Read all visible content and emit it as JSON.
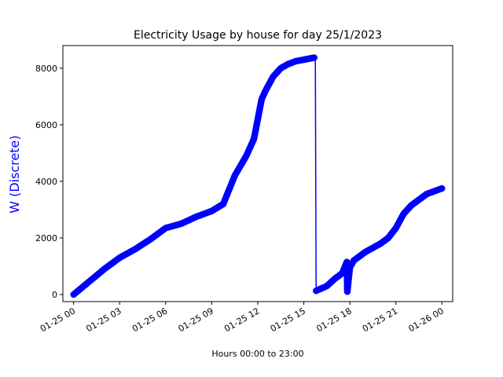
{
  "chart_data": {
    "type": "line",
    "title": "Electricity Usage by house for day 25/1/2023",
    "xlabel": "Hours 00:00 to 23:00",
    "ylabel": "W (Discrete)",
    "ylabel_color": "#0000ff",
    "series_color": "#0000ff",
    "marker": "circle",
    "grid": false,
    "xlim": [
      "2023-01-24 23:18",
      "2023-01-26 00:42"
    ],
    "ylim": [
      -250,
      8800
    ],
    "x_ticks": [
      {
        "label": "01-25 00",
        "value": "2023-01-25 00:00"
      },
      {
        "label": "01-25 03",
        "value": "2023-01-25 03:00"
      },
      {
        "label": "01-25 06",
        "value": "2023-01-25 06:00"
      },
      {
        "label": "01-25 09",
        "value": "2023-01-25 09:00"
      },
      {
        "label": "01-25 12",
        "value": "2023-01-25 12:00"
      },
      {
        "label": "01-25 15",
        "value": "2023-01-25 15:00"
      },
      {
        "label": "01-25 18",
        "value": "2023-01-25 18:00"
      },
      {
        "label": "01-25 21",
        "value": "2023-01-25 21:00"
      },
      {
        "label": "01-26 00",
        "value": "2023-01-26 00:00"
      }
    ],
    "y_ticks": [
      {
        "label": "0",
        "value": 0
      },
      {
        "label": "2000",
        "value": 2000
      },
      {
        "label": "4000",
        "value": 4000
      },
      {
        "label": "6000",
        "value": 6000
      },
      {
        "label": "8000",
        "value": 8000
      }
    ],
    "series": [
      {
        "x": [
          "2023-01-25 00:00",
          "2023-01-25 01:00",
          "2023-01-25 02:00",
          "2023-01-25 03:00",
          "2023-01-25 04:00",
          "2023-01-25 05:00",
          "2023-01-25 06:00",
          "2023-01-25 07:00",
          "2023-01-25 08:00",
          "2023-01-25 09:00",
          "2023-01-25 09:45",
          "2023-01-25 10:30",
          "2023-01-25 11:15",
          "2023-01-25 11:45",
          "2023-01-25 12:00",
          "2023-01-25 12:15",
          "2023-01-25 12:30",
          "2023-01-25 13:00",
          "2023-01-25 13:30",
          "2023-01-25 14:00",
          "2023-01-25 14:30",
          "2023-01-25 15:00",
          "2023-01-25 15:45",
          "2023-01-25 15:48",
          "2023-01-25 16:30",
          "2023-01-25 17:00",
          "2023-01-25 17:30",
          "2023-01-25 17:48",
          "2023-01-25 17:50",
          "2023-01-25 18:00",
          "2023-01-25 18:15",
          "2023-01-25 19:00",
          "2023-01-25 20:00",
          "2023-01-25 20:30",
          "2023-01-25 21:00",
          "2023-01-25 21:30",
          "2023-01-25 22:00",
          "2023-01-25 22:30",
          "2023-01-25 23:00",
          "2023-01-26 00:00"
        ],
        "y": [
          0,
          450,
          900,
          1300,
          1600,
          1950,
          2350,
          2500,
          2750,
          2950,
          3200,
          4200,
          4900,
          5500,
          6200,
          6900,
          7200,
          7700,
          8000,
          8150,
          8250,
          8300,
          8380,
          130,
          300,
          550,
          750,
          1150,
          100,
          950,
          1200,
          1500,
          1800,
          2000,
          2350,
          2850,
          3150,
          3350,
          3550,
          3750
        ]
      }
    ]
  }
}
